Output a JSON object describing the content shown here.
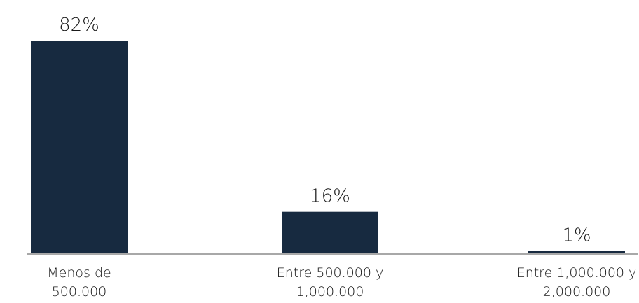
{
  "chart_data": {
    "type": "bar",
    "categories": [
      [
        "Menos de",
        "500.000"
      ],
      [
        "Entre 500.000 y",
        "1,000.000"
      ],
      [
        "Entre 1,000.000 y",
        "2,000.000"
      ]
    ],
    "values": [
      82,
      16,
      1
    ],
    "value_labels": [
      "82%",
      "16%",
      "1%"
    ],
    "ylim": [
      0,
      82
    ],
    "grid": false,
    "legend": "none",
    "colors": {
      "bar": "#172a40",
      "axis": "#8c8c8c",
      "text": "#1a1a1a"
    }
  }
}
